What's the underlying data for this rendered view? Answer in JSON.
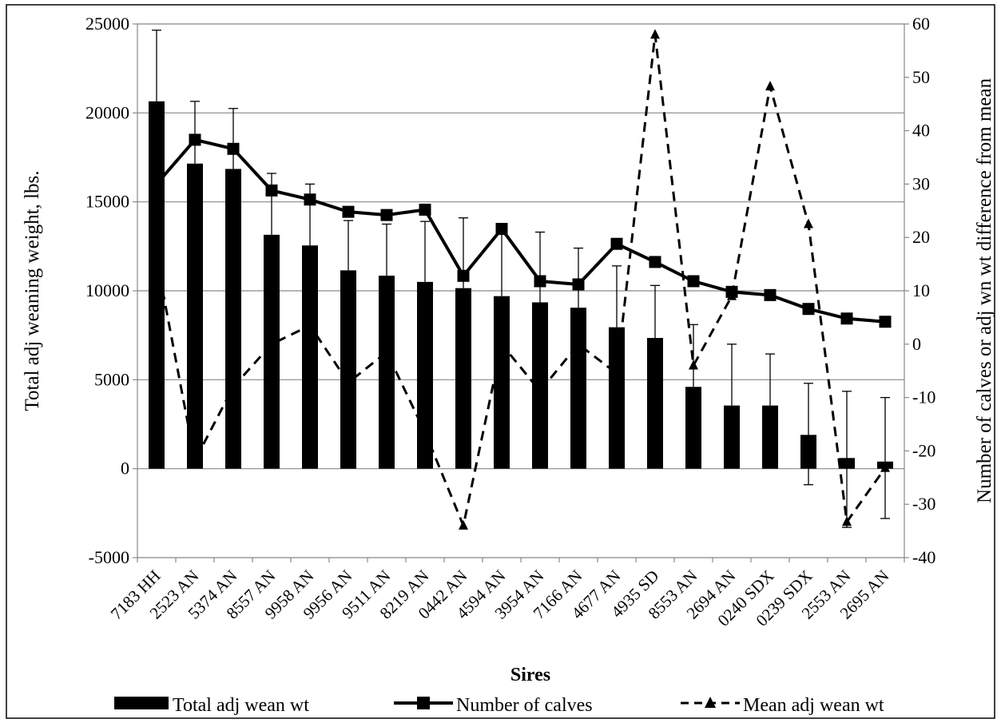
{
  "chart_data": {
    "type": "bar",
    "xlabel": "Sires",
    "ylabel_left": "Total adj weaning weight, lbs.",
    "ylabel_right": "Number of calves or adj wn wt difference from mean",
    "ylim_left": [
      -5000,
      25000
    ],
    "yticks_left": [
      -5000,
      0,
      5000,
      10000,
      15000,
      20000,
      25000
    ],
    "ylim_right": [
      -40,
      60
    ],
    "yticks_right": [
      -40,
      -30,
      -20,
      -10,
      0,
      10,
      20,
      30,
      40,
      50,
      60
    ],
    "grid": true,
    "legend_position": "bottom",
    "categories": [
      "7183 HH",
      "2523 AN",
      "5374 AN",
      "8557 AN",
      "9958 AN",
      "9956 AN",
      "9511 AN",
      "8219 AN",
      "0442 AN",
      "4594 AN",
      "3954 AN",
      "7166 AN",
      "4677 AN",
      "4935 SD",
      "8553 AN",
      "2694 AN",
      "0240 SDX",
      "0239 SDX",
      "2553 AN",
      "2695 AN"
    ],
    "series": [
      {
        "name": "Total adj wean wt",
        "kind": "bar",
        "axis": "left",
        "values": [
          20650,
          17150,
          16850,
          13150,
          12550,
          11150,
          10850,
          10500,
          10150,
          9700,
          9350,
          9050,
          7950,
          7350,
          4600,
          3550,
          3550,
          1900,
          600,
          400
        ],
        "error_plus": [
          4000,
          3500,
          3400,
          3450,
          3450,
          2800,
          2900,
          3400,
          3950,
          3700,
          3950,
          3350,
          3450,
          2950,
          3500,
          3450,
          2900,
          2900,
          3750,
          3600
        ],
        "error_minus": [
          0,
          0,
          0,
          0,
          0,
          0,
          0,
          0,
          0,
          0,
          0,
          0,
          0,
          0,
          0,
          0,
          0,
          2800,
          3900,
          3200
        ]
      },
      {
        "name": "Number of calves",
        "kind": "line",
        "axis": "right",
        "values": [
          30,
          38.3,
          36.6,
          28.8,
          27.1,
          24.8,
          24.2,
          25.2,
          12.8,
          21.6,
          11.8,
          11.2,
          18.8,
          15.4,
          11.8,
          9.8,
          9.2,
          6.6,
          4.8,
          4.2
        ]
      },
      {
        "name": "Mean adj wean wt",
        "kind": "line",
        "axis": "right",
        "values": [
          16,
          -21.8,
          -8,
          0,
          3.5,
          -7.2,
          -1.5,
          -16.5,
          -34,
          0,
          -8.8,
          0,
          -5.5,
          58,
          -4,
          9,
          48.3,
          22.5,
          -33.3,
          -23.2
        ]
      }
    ]
  }
}
